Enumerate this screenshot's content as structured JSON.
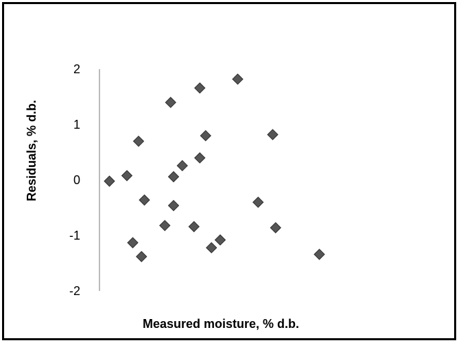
{
  "chart_data": {
    "type": "scatter",
    "title": "",
    "xlabel": "Measured moisture, % d.b.",
    "ylabel": "Residuals, % d.b.",
    "xlim": [
      0,
      100
    ],
    "ylim": [
      -2,
      2
    ],
    "yticks": [
      "2",
      "1",
      "0",
      "-1",
      "-2"
    ],
    "grid": false,
    "legend": "none",
    "marker": "diamond",
    "marker_color": "#555555",
    "series": [
      {
        "points": [
          {
            "x": 14,
            "y": -0.02
          },
          {
            "x": 20,
            "y": 0.08
          },
          {
            "x": 24,
            "y": 0.7
          },
          {
            "x": 26,
            "y": -0.36
          },
          {
            "x": 22,
            "y": -1.13
          },
          {
            "x": 25,
            "y": -1.38
          },
          {
            "x": 33,
            "y": -0.82
          },
          {
            "x": 35,
            "y": 1.4
          },
          {
            "x": 36,
            "y": 0.06
          },
          {
            "x": 36,
            "y": -0.46
          },
          {
            "x": 39,
            "y": 0.26
          },
          {
            "x": 43,
            "y": -0.84
          },
          {
            "x": 45,
            "y": 1.66
          },
          {
            "x": 45,
            "y": 0.4
          },
          {
            "x": 47,
            "y": 0.8
          },
          {
            "x": 49,
            "y": -1.22
          },
          {
            "x": 52,
            "y": -1.08
          },
          {
            "x": 58,
            "y": 1.82
          },
          {
            "x": 65,
            "y": -0.4
          },
          {
            "x": 70,
            "y": 0.82
          },
          {
            "x": 71,
            "y": -0.86
          },
          {
            "x": 86,
            "y": -1.34
          }
        ]
      }
    ]
  }
}
